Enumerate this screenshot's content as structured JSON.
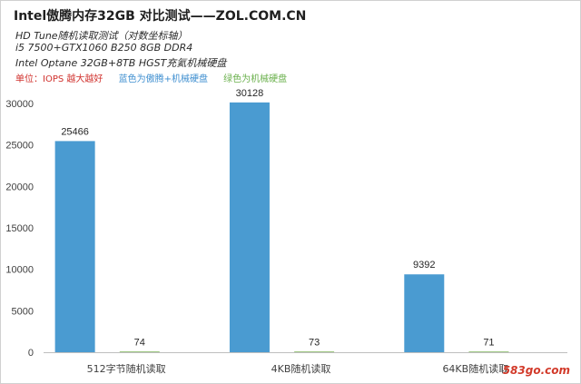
{
  "header": {
    "title": "Intel傲腾内存32GB 对比测试——ZOL.COM.CN",
    "subtitles": [
      "HD Tune随机读取测试（对数坐标轴）",
      "i5 7500+GTX1060 B250 8GB DDR4",
      "Intel Optane 32GB+8TB HGST充氦机械硬盘"
    ],
    "notes": [
      {
        "text": "单位：IOPS 越大越好",
        "color": "#d0312d"
      },
      {
        "text": "蓝色为傲腾+机械硬盘",
        "color": "#3f8fd0"
      },
      {
        "text": "绿色为机械硬盘",
        "color": "#6ab04c"
      }
    ]
  },
  "watermark": "583go.com",
  "chart_data": {
    "type": "bar",
    "categories": [
      "512字节随机读取",
      "4KB随机读取",
      "64KB随机读取"
    ],
    "series": [
      {
        "values": [
          25466,
          30128,
          9392
        ],
        "color": "#4a9bd1"
      },
      {
        "values": [
          74,
          73,
          71
        ],
        "color": "#70ad47"
      }
    ],
    "ylim": [
      0,
      30000
    ],
    "yticks": [
      0,
      5000,
      10000,
      15000,
      20000,
      25000,
      30000
    ],
    "grid": false,
    "data_labels": true
  }
}
